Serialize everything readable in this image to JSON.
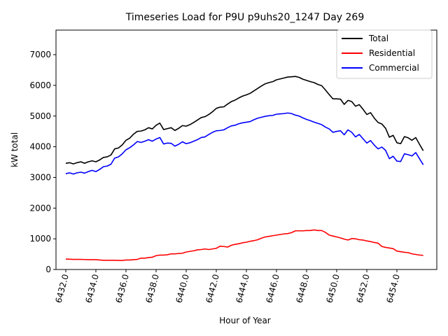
{
  "chart_data": {
    "type": "line",
    "title": "Timeseries Load for P9U p9uhs20_1247  Day 269",
    "xlabel": "Hour of Year",
    "ylabel": "kW total",
    "xlim": [
      6431.35,
      6456.65
    ],
    "ylim": [
      0,
      7800
    ],
    "x_ticks": [
      6432,
      6434,
      6436,
      6438,
      6440,
      6442,
      6444,
      6446,
      6448,
      6450,
      6452,
      6454
    ],
    "x_tick_labels": [
      "6432.0",
      "6434.0",
      "6436.0",
      "6438.0",
      "6440.0",
      "6442.0",
      "6444.0",
      "6446.0",
      "6448.0",
      "6450.0",
      "6452.0",
      "6454.0"
    ],
    "y_ticks": [
      0,
      1000,
      2000,
      3000,
      4000,
      5000,
      6000,
      7000
    ],
    "y_tick_labels": [
      "0",
      "1000",
      "2000",
      "3000",
      "4000",
      "5000",
      "6000",
      "7000"
    ],
    "grid": false,
    "legend_position": "top-right",
    "series": [
      {
        "name": "Total",
        "color": "#000000",
        "points": [
          [
            6432.0,
            3460
          ],
          [
            6432.25,
            3480
          ],
          [
            6432.5,
            3440
          ],
          [
            6432.75,
            3480
          ],
          [
            6433.0,
            3510
          ],
          [
            6433.25,
            3460
          ],
          [
            6433.5,
            3510
          ],
          [
            6433.75,
            3540
          ],
          [
            6434.0,
            3510
          ],
          [
            6434.25,
            3570
          ],
          [
            6434.5,
            3650
          ],
          [
            6434.75,
            3670
          ],
          [
            6435.0,
            3730
          ],
          [
            6435.25,
            3930
          ],
          [
            6435.5,
            3960
          ],
          [
            6435.75,
            4060
          ],
          [
            6436.0,
            4210
          ],
          [
            6436.25,
            4280
          ],
          [
            6436.5,
            4410
          ],
          [
            6436.75,
            4500
          ],
          [
            6437.0,
            4510
          ],
          [
            6437.25,
            4550
          ],
          [
            6437.5,
            4620
          ],
          [
            6437.75,
            4580
          ],
          [
            6438.0,
            4700
          ],
          [
            6438.25,
            4770
          ],
          [
            6438.5,
            4560
          ],
          [
            6438.75,
            4590
          ],
          [
            6439.0,
            4620
          ],
          [
            6439.25,
            4530
          ],
          [
            6439.5,
            4600
          ],
          [
            6439.75,
            4690
          ],
          [
            6440.0,
            4670
          ],
          [
            6440.25,
            4720
          ],
          [
            6440.5,
            4790
          ],
          [
            6440.75,
            4870
          ],
          [
            6441.0,
            4950
          ],
          [
            6441.25,
            4980
          ],
          [
            6441.5,
            5050
          ],
          [
            6441.75,
            5140
          ],
          [
            6442.0,
            5250
          ],
          [
            6442.25,
            5290
          ],
          [
            6442.5,
            5300
          ],
          [
            6442.75,
            5390
          ],
          [
            6443.0,
            5470
          ],
          [
            6443.25,
            5520
          ],
          [
            6443.5,
            5590
          ],
          [
            6443.75,
            5650
          ],
          [
            6444.0,
            5690
          ],
          [
            6444.25,
            5740
          ],
          [
            6444.5,
            5820
          ],
          [
            6444.75,
            5900
          ],
          [
            6445.0,
            5980
          ],
          [
            6445.25,
            6050
          ],
          [
            6445.5,
            6090
          ],
          [
            6445.75,
            6120
          ],
          [
            6446.0,
            6180
          ],
          [
            6446.25,
            6210
          ],
          [
            6446.5,
            6240
          ],
          [
            6446.75,
            6270
          ],
          [
            6447.0,
            6280
          ],
          [
            6447.25,
            6290
          ],
          [
            6447.5,
            6260
          ],
          [
            6447.75,
            6200
          ],
          [
            6448.0,
            6160
          ],
          [
            6448.25,
            6120
          ],
          [
            6448.5,
            6090
          ],
          [
            6448.75,
            6030
          ],
          [
            6449.0,
            5990
          ],
          [
            6449.25,
            5850
          ],
          [
            6449.5,
            5700
          ],
          [
            6449.75,
            5560
          ],
          [
            6450.0,
            5560
          ],
          [
            6450.25,
            5550
          ],
          [
            6450.5,
            5380
          ],
          [
            6450.75,
            5510
          ],
          [
            6451.0,
            5470
          ],
          [
            6451.25,
            5320
          ],
          [
            6451.5,
            5370
          ],
          [
            6451.75,
            5220
          ],
          [
            6452.0,
            5050
          ],
          [
            6452.25,
            5110
          ],
          [
            6452.5,
            4930
          ],
          [
            6452.75,
            4790
          ],
          [
            6453.0,
            4740
          ],
          [
            6453.25,
            4600
          ],
          [
            6453.5,
            4310
          ],
          [
            6453.75,
            4370
          ],
          [
            6454.0,
            4130
          ],
          [
            6454.25,
            4100
          ],
          [
            6454.5,
            4330
          ],
          [
            6454.75,
            4290
          ],
          [
            6455.0,
            4210
          ],
          [
            6455.25,
            4300
          ],
          [
            6455.5,
            4080
          ],
          [
            6455.75,
            3870
          ]
        ]
      },
      {
        "name": "Residential",
        "color": "#ff0000",
        "points": [
          [
            6432.0,
            340
          ],
          [
            6432.25,
            335
          ],
          [
            6432.5,
            330
          ],
          [
            6432.75,
            330
          ],
          [
            6433.0,
            330
          ],
          [
            6433.25,
            325
          ],
          [
            6433.5,
            320
          ],
          [
            6433.75,
            320
          ],
          [
            6434.0,
            320
          ],
          [
            6434.25,
            310
          ],
          [
            6434.5,
            300
          ],
          [
            6434.75,
            300
          ],
          [
            6435.0,
            300
          ],
          [
            6435.25,
            300
          ],
          [
            6435.5,
            295
          ],
          [
            6435.75,
            295
          ],
          [
            6436.0,
            310
          ],
          [
            6436.25,
            310
          ],
          [
            6436.5,
            320
          ],
          [
            6436.75,
            330
          ],
          [
            6437.0,
            370
          ],
          [
            6437.25,
            370
          ],
          [
            6437.5,
            390
          ],
          [
            6437.75,
            400
          ],
          [
            6438.0,
            450
          ],
          [
            6438.25,
            470
          ],
          [
            6438.5,
            470
          ],
          [
            6438.75,
            480
          ],
          [
            6439.0,
            510
          ],
          [
            6439.25,
            510
          ],
          [
            6439.5,
            520
          ],
          [
            6439.75,
            530
          ],
          [
            6440.0,
            570
          ],
          [
            6440.25,
            590
          ],
          [
            6440.5,
            610
          ],
          [
            6440.75,
            640
          ],
          [
            6441.0,
            650
          ],
          [
            6441.25,
            670
          ],
          [
            6441.5,
            650
          ],
          [
            6441.75,
            670
          ],
          [
            6442.0,
            690
          ],
          [
            6442.25,
            760
          ],
          [
            6442.5,
            750
          ],
          [
            6442.75,
            730
          ],
          [
            6443.0,
            790
          ],
          [
            6443.25,
            820
          ],
          [
            6443.5,
            840
          ],
          [
            6443.75,
            870
          ],
          [
            6444.0,
            890
          ],
          [
            6444.25,
            920
          ],
          [
            6444.5,
            940
          ],
          [
            6444.75,
            970
          ],
          [
            6445.0,
            1020
          ],
          [
            6445.25,
            1060
          ],
          [
            6445.5,
            1080
          ],
          [
            6445.75,
            1100
          ],
          [
            6446.0,
            1120
          ],
          [
            6446.25,
            1140
          ],
          [
            6446.5,
            1160
          ],
          [
            6446.75,
            1170
          ],
          [
            6447.0,
            1200
          ],
          [
            6447.25,
            1260
          ],
          [
            6447.5,
            1260
          ],
          [
            6447.75,
            1260
          ],
          [
            6448.0,
            1270
          ],
          [
            6448.25,
            1270
          ],
          [
            6448.5,
            1290
          ],
          [
            6448.75,
            1270
          ],
          [
            6449.0,
            1270
          ],
          [
            6449.25,
            1210
          ],
          [
            6449.5,
            1120
          ],
          [
            6449.75,
            1090
          ],
          [
            6450.0,
            1060
          ],
          [
            6450.25,
            1030
          ],
          [
            6450.5,
            990
          ],
          [
            6450.75,
            960
          ],
          [
            6451.0,
            1010
          ],
          [
            6451.25,
            1000
          ],
          [
            6451.5,
            970
          ],
          [
            6451.75,
            960
          ],
          [
            6452.0,
            930
          ],
          [
            6452.25,
            910
          ],
          [
            6452.5,
            880
          ],
          [
            6452.75,
            860
          ],
          [
            6453.0,
            750
          ],
          [
            6453.25,
            720
          ],
          [
            6453.5,
            700
          ],
          [
            6453.75,
            680
          ],
          [
            6454.0,
            600
          ],
          [
            6454.25,
            580
          ],
          [
            6454.5,
            560
          ],
          [
            6454.75,
            550
          ],
          [
            6455.0,
            510
          ],
          [
            6455.25,
            490
          ],
          [
            6455.5,
            470
          ],
          [
            6455.75,
            460
          ]
        ]
      },
      {
        "name": "Commercial",
        "color": "#0000ff",
        "points": [
          [
            6432.0,
            3120
          ],
          [
            6432.25,
            3150
          ],
          [
            6432.5,
            3110
          ],
          [
            6432.75,
            3150
          ],
          [
            6433.0,
            3170
          ],
          [
            6433.25,
            3140
          ],
          [
            6433.5,
            3190
          ],
          [
            6433.75,
            3230
          ],
          [
            6434.0,
            3190
          ],
          [
            6434.25,
            3260
          ],
          [
            6434.5,
            3350
          ],
          [
            6434.75,
            3370
          ],
          [
            6435.0,
            3430
          ],
          [
            6435.25,
            3630
          ],
          [
            6435.5,
            3670
          ],
          [
            6435.75,
            3770
          ],
          [
            6436.0,
            3900
          ],
          [
            6436.25,
            3970
          ],
          [
            6436.5,
            4060
          ],
          [
            6436.75,
            4170
          ],
          [
            6437.0,
            4140
          ],
          [
            6437.25,
            4180
          ],
          [
            6437.5,
            4230
          ],
          [
            6437.75,
            4180
          ],
          [
            6438.0,
            4250
          ],
          [
            6438.25,
            4300
          ],
          [
            6438.5,
            4090
          ],
          [
            6438.75,
            4120
          ],
          [
            6439.0,
            4110
          ],
          [
            6439.25,
            4020
          ],
          [
            6439.5,
            4080
          ],
          [
            6439.75,
            4160
          ],
          [
            6440.0,
            4100
          ],
          [
            6440.25,
            4130
          ],
          [
            6440.5,
            4180
          ],
          [
            6440.75,
            4230
          ],
          [
            6441.0,
            4300
          ],
          [
            6441.25,
            4320
          ],
          [
            6441.5,
            4400
          ],
          [
            6441.75,
            4470
          ],
          [
            6442.0,
            4520
          ],
          [
            6442.25,
            4530
          ],
          [
            6442.5,
            4550
          ],
          [
            6442.75,
            4620
          ],
          [
            6443.0,
            4680
          ],
          [
            6443.25,
            4700
          ],
          [
            6443.5,
            4750
          ],
          [
            6443.75,
            4780
          ],
          [
            6444.0,
            4800
          ],
          [
            6444.25,
            4820
          ],
          [
            6444.5,
            4880
          ],
          [
            6444.75,
            4930
          ],
          [
            6445.0,
            4960
          ],
          [
            6445.25,
            4990
          ],
          [
            6445.5,
            5010
          ],
          [
            6445.75,
            5020
          ],
          [
            6446.0,
            5060
          ],
          [
            6446.25,
            5070
          ],
          [
            6446.5,
            5080
          ],
          [
            6446.75,
            5100
          ],
          [
            6447.0,
            5080
          ],
          [
            6447.25,
            5030
          ],
          [
            6447.5,
            5000
          ],
          [
            6447.75,
            4940
          ],
          [
            6448.0,
            4890
          ],
          [
            6448.25,
            4850
          ],
          [
            6448.5,
            4800
          ],
          [
            6448.75,
            4760
          ],
          [
            6449.0,
            4720
          ],
          [
            6449.25,
            4640
          ],
          [
            6449.5,
            4580
          ],
          [
            6449.75,
            4470
          ],
          [
            6450.0,
            4500
          ],
          [
            6450.25,
            4520
          ],
          [
            6450.5,
            4390
          ],
          [
            6450.75,
            4550
          ],
          [
            6451.0,
            4470
          ],
          [
            6451.25,
            4320
          ],
          [
            6451.5,
            4400
          ],
          [
            6451.75,
            4260
          ],
          [
            6452.0,
            4120
          ],
          [
            6452.25,
            4200
          ],
          [
            6452.5,
            4050
          ],
          [
            6452.75,
            3930
          ],
          [
            6453.0,
            3990
          ],
          [
            6453.25,
            3880
          ],
          [
            6453.5,
            3610
          ],
          [
            6453.75,
            3690
          ],
          [
            6454.0,
            3530
          ],
          [
            6454.25,
            3520
          ],
          [
            6454.5,
            3770
          ],
          [
            6454.75,
            3740
          ],
          [
            6455.0,
            3700
          ],
          [
            6455.25,
            3810
          ],
          [
            6455.5,
            3610
          ],
          [
            6455.75,
            3410
          ]
        ]
      }
    ]
  }
}
